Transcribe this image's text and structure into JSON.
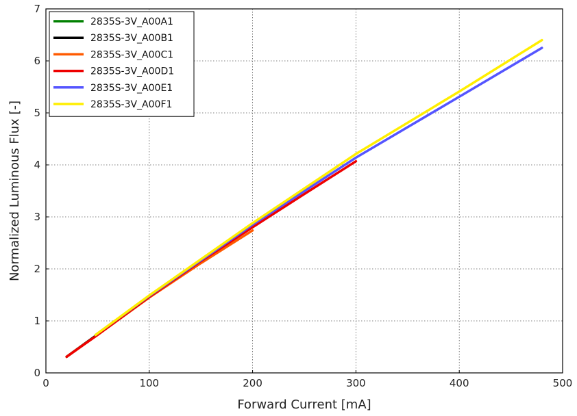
{
  "chart_data": {
    "type": "line",
    "title": "",
    "xlabel": "Forward Current [mA]",
    "ylabel": "Normalized Luminous Flux [-]",
    "xlim": [
      0,
      500
    ],
    "ylim": [
      0,
      7
    ],
    "xticks": [
      0,
      100,
      200,
      300,
      400,
      500
    ],
    "yticks": [
      0,
      1,
      2,
      3,
      4,
      5,
      6,
      7
    ],
    "grid": true,
    "legend_position": "top-left",
    "series": [
      {
        "name": "2835S-3V_A00A1",
        "color": "#008000",
        "x": [
          20,
          50,
          100,
          150,
          200
        ],
        "y": [
          0.31,
          0.74,
          1.47,
          2.17,
          2.83
        ]
      },
      {
        "name": "2835S-3V_A00B1",
        "color": "#000000",
        "x": [
          20,
          50,
          100,
          150,
          200
        ],
        "y": [
          0.31,
          0.74,
          1.47,
          2.16,
          2.82
        ]
      },
      {
        "name": "2835S-3V_A00C1",
        "color": "#ff5a00",
        "x": [
          20,
          50,
          100,
          150,
          200
        ],
        "y": [
          0.31,
          0.73,
          1.45,
          2.11,
          2.74
        ]
      },
      {
        "name": "2835S-3V_A00D1",
        "color": "#ee0000",
        "x": [
          20,
          50,
          100,
          150,
          200,
          250,
          300
        ],
        "y": [
          0.31,
          0.73,
          1.46,
          2.15,
          2.8,
          3.44,
          4.07
        ]
      },
      {
        "name": "2835S-3V_A00E1",
        "color": "#5555ff",
        "x": [
          48,
          100,
          200,
          300,
          400,
          480
        ],
        "y": [
          0.73,
          1.48,
          2.85,
          4.14,
          5.31,
          6.25
        ]
      },
      {
        "name": "2835S-3V_A00F1",
        "color": "#ffee00",
        "x": [
          48,
          100,
          200,
          300,
          400,
          480
        ],
        "y": [
          0.73,
          1.49,
          2.88,
          4.21,
          5.41,
          6.4
        ]
      }
    ]
  }
}
